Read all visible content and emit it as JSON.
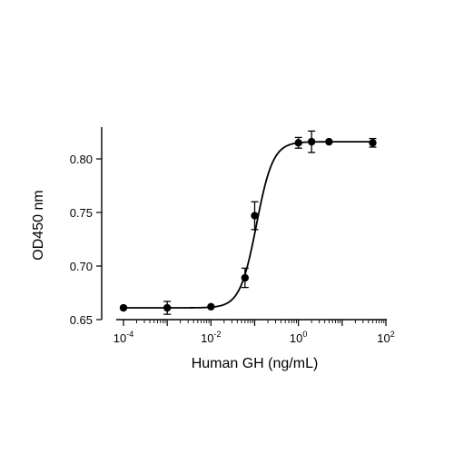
{
  "chart_data": {
    "type": "scatter",
    "xlabel": "Human GH (ng/mL)",
    "ylabel": "OD450 nm",
    "xscale": "log",
    "xlim": [
      0.0001,
      100
    ],
    "ylim": [
      0.65,
      0.825
    ],
    "x_ticks": [
      {
        "value": 0.0001,
        "base": "10",
        "exp": "-4"
      },
      {
        "value": 0.01,
        "base": "10",
        "exp": "-2"
      },
      {
        "value": 1,
        "base": "10",
        "exp": "0"
      },
      {
        "value": 100,
        "base": "10",
        "exp": "2"
      }
    ],
    "y_ticks": [
      "0.65",
      "0.70",
      "0.75",
      "0.80"
    ],
    "series": [
      {
        "x": [
          0.0001,
          0.001,
          0.01,
          0.06,
          0.1,
          1,
          2,
          5,
          50
        ],
        "y": [
          0.661,
          0.661,
          0.662,
          0.689,
          0.747,
          0.815,
          0.816,
          0.816,
          0.815
        ],
        "error": [
          0,
          0.006,
          0,
          0.009,
          0.013,
          0.005,
          0.01,
          0,
          0.004
        ]
      }
    ],
    "fit_curve": {
      "type": "4PL",
      "bottom": 0.661,
      "top": 0.816,
      "log_ec50": -0.96,
      "hill": 2.3
    },
    "grid": false,
    "legend": "none"
  }
}
